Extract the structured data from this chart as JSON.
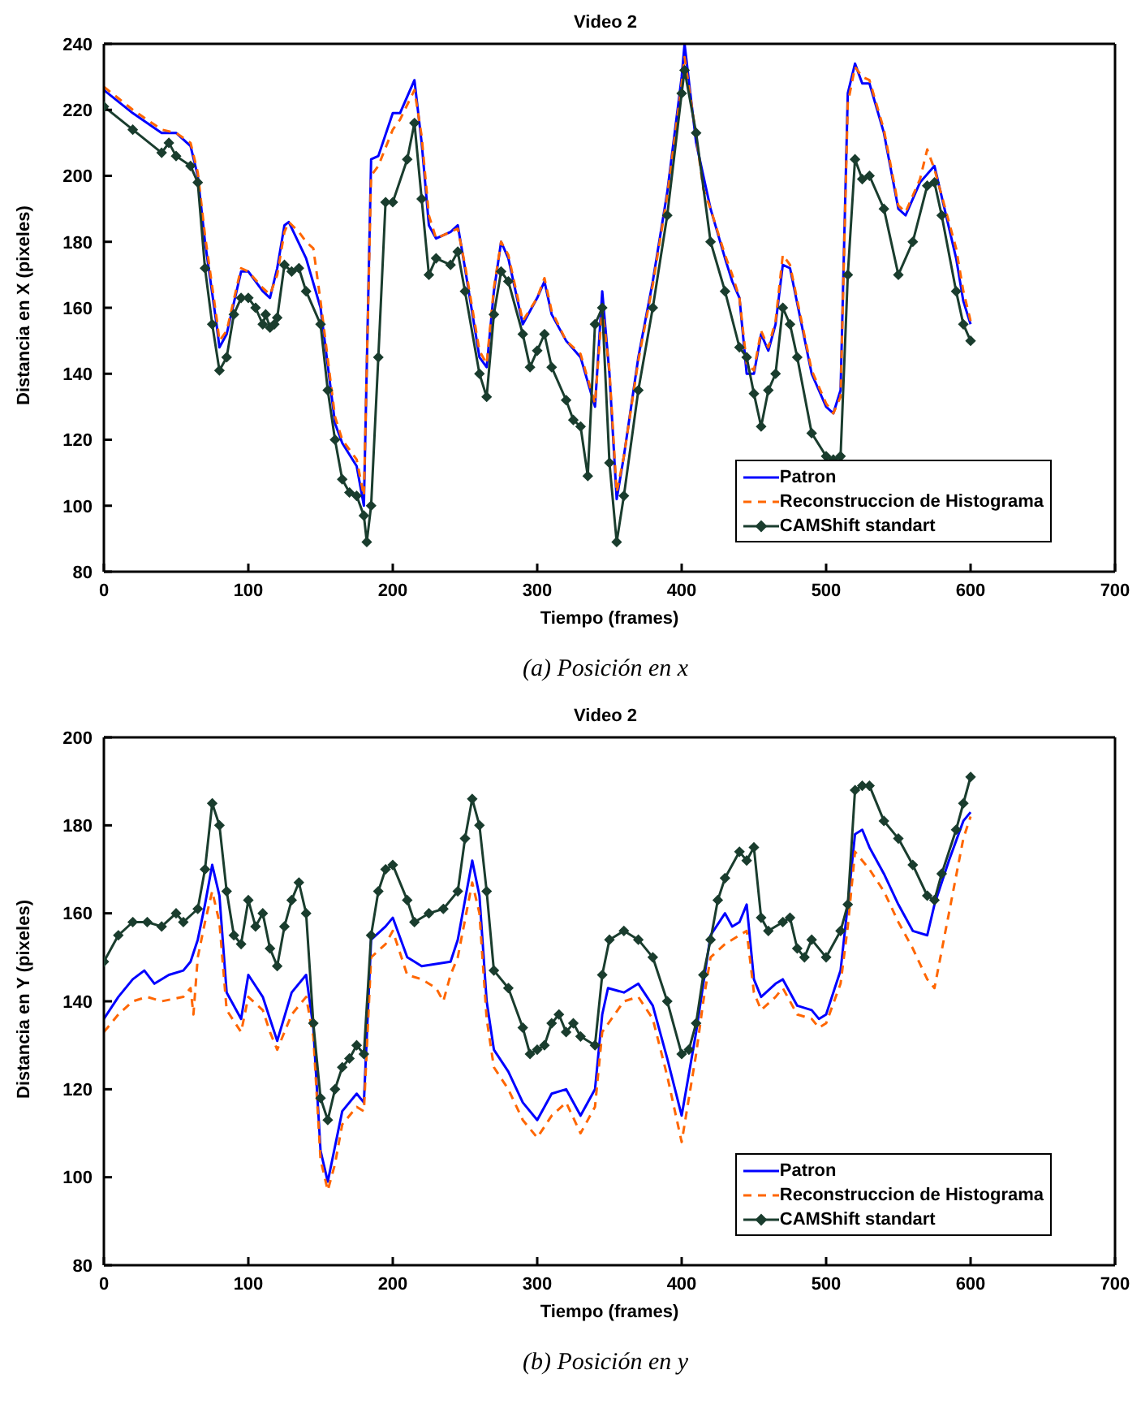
{
  "chart_data": [
    {
      "type": "line",
      "title": "Video 2",
      "xlabel": "Tiempo (frames)",
      "ylabel": "Distancia en X (pixeles)",
      "xlim": [
        0,
        700
      ],
      "xticks": [
        0,
        100,
        200,
        300,
        400,
        500,
        600,
        700
      ],
      "ylim": [
        80,
        240
      ],
      "yticks": [
        80,
        100,
        120,
        140,
        160,
        180,
        200,
        220,
        240
      ],
      "grid": false,
      "legend": "bottom right",
      "annotations": [
        "(a) Posición en x"
      ],
      "series": [
        {
          "name": "Patron",
          "color": "#0000ff",
          "line_style": "solid",
          "marker": "none",
          "x": [
            0,
            20,
            40,
            50,
            60,
            65,
            70,
            78,
            80,
            85,
            95,
            100,
            110,
            115,
            120,
            125,
            128,
            140,
            150,
            160,
            165,
            175,
            180,
            185,
            190,
            200,
            205,
            215,
            220,
            225,
            230,
            240,
            245,
            250,
            260,
            265,
            270,
            275,
            280,
            290,
            300,
            305,
            310,
            320,
            330,
            340,
            345,
            350,
            355,
            360,
            370,
            380,
            390,
            400,
            402,
            410,
            420,
            430,
            435,
            440,
            445,
            450,
            455,
            460,
            465,
            470,
            475,
            490,
            500,
            505,
            510,
            515,
            520,
            525,
            530,
            540,
            550,
            555,
            565,
            575,
            590,
            595,
            600
          ],
          "values": [
            226,
            219,
            213,
            213,
            209,
            200,
            180,
            155,
            148,
            152,
            171,
            171,
            165,
            163,
            172,
            185,
            186,
            175,
            160,
            125,
            119,
            112,
            100,
            205,
            206,
            219,
            219,
            229,
            210,
            185,
            181,
            183,
            185,
            172,
            145,
            142,
            165,
            180,
            175,
            155,
            163,
            168,
            158,
            150,
            145,
            130,
            165,
            140,
            102,
            115,
            145,
            168,
            195,
            230,
            240,
            210,
            190,
            175,
            168,
            163,
            140,
            140,
            152,
            147,
            155,
            173,
            172,
            140,
            130,
            128,
            135,
            225,
            234,
            228,
            228,
            213,
            190,
            188,
            198,
            203,
            175,
            162,
            155
          ]
        },
        {
          "name": "Reconstruccion de Histograma",
          "color": "#ff6600",
          "line_style": "dashed",
          "marker": "none",
          "x": [
            0,
            20,
            40,
            50,
            60,
            65,
            70,
            78,
            80,
            85,
            95,
            100,
            110,
            115,
            120,
            125,
            128,
            135,
            140,
            145,
            150,
            160,
            165,
            175,
            180,
            185,
            190,
            200,
            205,
            215,
            220,
            225,
            230,
            240,
            245,
            250,
            260,
            265,
            270,
            275,
            280,
            290,
            300,
            305,
            310,
            320,
            330,
            340,
            345,
            350,
            355,
            360,
            370,
            380,
            390,
            400,
            402,
            410,
            415,
            420,
            430,
            435,
            440,
            445,
            450,
            455,
            460,
            465,
            470,
            475,
            490,
            500,
            505,
            510,
            515,
            520,
            525,
            530,
            540,
            550,
            555,
            565,
            570,
            575,
            590,
            595,
            600
          ],
          "values": [
            227,
            220,
            214,
            213,
            210,
            201,
            182,
            157,
            150,
            153,
            172,
            171,
            166,
            164,
            170,
            183,
            186,
            183,
            180,
            178,
            162,
            127,
            120,
            114,
            103,
            200,
            203,
            214,
            217,
            226,
            212,
            188,
            181,
            183,
            184,
            173,
            147,
            143,
            166,
            180,
            176,
            156,
            163,
            169,
            159,
            150,
            146,
            131,
            160,
            141,
            104,
            115,
            144,
            167,
            194,
            228,
            236,
            212,
            196,
            190,
            176,
            170,
            163,
            143,
            141,
            153,
            148,
            156,
            176,
            173,
            141,
            131,
            128,
            133,
            222,
            233,
            230,
            229,
            214,
            191,
            189,
            199,
            208,
            202,
            178,
            165,
            156
          ]
        },
        {
          "name": "CAMShift standart",
          "color": "#1a3d2e",
          "line_style": "solid",
          "marker": "diamond",
          "x": [
            0,
            20,
            40,
            45,
            50,
            60,
            65,
            70,
            75,
            80,
            85,
            90,
            95,
            100,
            105,
            110,
            112,
            115,
            118,
            120,
            125,
            130,
            135,
            140,
            150,
            155,
            160,
            165,
            170,
            175,
            180,
            182,
            185,
            190,
            195,
            200,
            210,
            215,
            220,
            225,
            230,
            240,
            245,
            250,
            260,
            265,
            270,
            275,
            280,
            290,
            295,
            300,
            305,
            310,
            320,
            325,
            330,
            335,
            340,
            345,
            350,
            355,
            360,
            370,
            380,
            390,
            400,
            402,
            410,
            420,
            430,
            440,
            445,
            450,
            455,
            460,
            465,
            470,
            475,
            480,
            490,
            500,
            505,
            510,
            515,
            520,
            525,
            530,
            540,
            550,
            560,
            570,
            575,
            580,
            590,
            595,
            600
          ],
          "values": [
            221,
            214,
            207,
            210,
            206,
            203,
            198,
            172,
            155,
            141,
            145,
            158,
            163,
            163,
            160,
            155,
            158,
            154,
            155,
            157,
            173,
            171,
            172,
            165,
            155,
            135,
            120,
            108,
            104,
            103,
            97,
            89,
            100,
            145,
            192,
            192,
            205,
            216,
            193,
            170,
            175,
            173,
            177,
            165,
            140,
            133,
            158,
            171,
            168,
            152,
            142,
            147,
            152,
            142,
            132,
            126,
            124,
            109,
            155,
            160,
            113,
            89,
            103,
            135,
            160,
            188,
            225,
            232,
            213,
            180,
            165,
            148,
            145,
            134,
            124,
            135,
            140,
            160,
            155,
            145,
            122,
            115,
            114,
            115,
            170,
            205,
            199,
            200,
            190,
            170,
            180,
            197,
            198,
            188,
            165,
            155,
            150
          ]
        }
      ]
    },
    {
      "type": "line",
      "title": "Video 2",
      "xlabel": "Tiempo (frames)",
      "ylabel": "Distancia en Y (pixeles)",
      "xlim": [
        0,
        700
      ],
      "xticks": [
        0,
        100,
        200,
        300,
        400,
        500,
        600,
        700
      ],
      "ylim": [
        80,
        200
      ],
      "yticks": [
        80,
        100,
        120,
        140,
        160,
        180,
        200
      ],
      "grid": false,
      "legend": "bottom right",
      "annotations": [
        "(b) Posición en y"
      ],
      "series": [
        {
          "name": "Patron",
          "color": "#0000ff",
          "line_style": "solid",
          "marker": "none",
          "x": [
            0,
            10,
            20,
            28,
            35,
            45,
            55,
            60,
            65,
            70,
            75,
            80,
            85,
            95,
            100,
            110,
            115,
            120,
            130,
            140,
            145,
            150,
            155,
            160,
            165,
            175,
            180,
            185,
            195,
            200,
            210,
            220,
            240,
            245,
            255,
            260,
            265,
            270,
            280,
            290,
            300,
            310,
            320,
            330,
            340,
            345,
            349,
            360,
            370,
            380,
            390,
            400,
            410,
            415,
            420,
            430,
            435,
            440,
            445,
            450,
            455,
            465,
            470,
            480,
            490,
            495,
            500,
            510,
            515,
            520,
            525,
            530,
            540,
            550,
            560,
            570,
            575,
            585,
            595,
            600
          ],
          "values": [
            136,
            141,
            145,
            147,
            144,
            146,
            147,
            149,
            154,
            162,
            171,
            164,
            142,
            136,
            146,
            141,
            136,
            131,
            142,
            146,
            134,
            106,
            99,
            107,
            115,
            119,
            117,
            154,
            157,
            159,
            150,
            148,
            149,
            154,
            172,
            164,
            140,
            129,
            124,
            117,
            113,
            119,
            120,
            114,
            120,
            137,
            143,
            142,
            144,
            139,
            127,
            114,
            133,
            144,
            155,
            160,
            157,
            158,
            162,
            145,
            141,
            144,
            145,
            139,
            138,
            136,
            137,
            147,
            162,
            178,
            179,
            175,
            169,
            162,
            156,
            155,
            162,
            172,
            181,
            183
          ]
        },
        {
          "name": "Reconstruccion de Histograma",
          "color": "#ff6600",
          "line_style": "dashed",
          "marker": "none",
          "x": [
            0,
            10,
            20,
            30,
            40,
            55,
            60,
            62,
            65,
            70,
            75,
            80,
            85,
            95,
            100,
            110,
            115,
            120,
            130,
            140,
            145,
            150,
            155,
            160,
            165,
            175,
            180,
            185,
            195,
            200,
            210,
            220,
            230,
            235,
            240,
            245,
            255,
            260,
            265,
            270,
            280,
            290,
            300,
            310,
            320,
            330,
            340,
            345,
            360,
            370,
            380,
            390,
            400,
            410,
            415,
            420,
            430,
            440,
            445,
            450,
            455,
            465,
            470,
            480,
            490,
            495,
            500,
            510,
            515,
            520,
            530,
            540,
            550,
            560,
            570,
            575,
            585,
            595,
            600
          ],
          "values": [
            133,
            137,
            140,
            141,
            140,
            141,
            143,
            137,
            150,
            158,
            165,
            158,
            138,
            133,
            141,
            138,
            133,
            129,
            137,
            141,
            132,
            104,
            97,
            103,
            112,
            116,
            115,
            150,
            153,
            156,
            146,
            145,
            143,
            140,
            146,
            150,
            167,
            160,
            136,
            125,
            120,
            113,
            109,
            114,
            117,
            110,
            116,
            133,
            140,
            141,
            136,
            123,
            108,
            128,
            140,
            150,
            153,
            155,
            156,
            142,
            138,
            141,
            143,
            137,
            136,
            134,
            135,
            144,
            157,
            174,
            170,
            165,
            158,
            152,
            145,
            143,
            160,
            177,
            182
          ]
        },
        {
          "name": "CAMShift standart",
          "color": "#1a3d2e",
          "line_style": "solid",
          "marker": "diamond",
          "x": [
            0,
            10,
            20,
            30,
            40,
            50,
            55,
            65,
            70,
            75,
            80,
            85,
            90,
            95,
            100,
            105,
            110,
            115,
            120,
            125,
            130,
            135,
            140,
            145,
            150,
            155,
            160,
            165,
            170,
            175,
            180,
            185,
            190,
            195,
            200,
            210,
            215,
            225,
            235,
            245,
            250,
            255,
            260,
            265,
            270,
            280,
            290,
            295,
            300,
            305,
            310,
            315,
            320,
            325,
            330,
            340,
            345,
            350,
            360,
            370,
            380,
            390,
            400,
            405,
            410,
            415,
            420,
            425,
            430,
            440,
            445,
            450,
            455,
            460,
            470,
            475,
            480,
            485,
            490,
            500,
            510,
            515,
            520,
            525,
            530,
            540,
            550,
            560,
            570,
            575,
            580,
            590,
            595,
            600
          ],
          "values": [
            149,
            155,
            158,
            158,
            157,
            160,
            158,
            161,
            170,
            185,
            180,
            165,
            155,
            153,
            163,
            157,
            160,
            152,
            148,
            157,
            163,
            167,
            160,
            135,
            118,
            113,
            120,
            125,
            127,
            130,
            128,
            155,
            165,
            170,
            171,
            163,
            158,
            160,
            161,
            165,
            177,
            186,
            180,
            165,
            147,
            143,
            134,
            128,
            129,
            130,
            135,
            137,
            133,
            135,
            132,
            130,
            146,
            154,
            156,
            154,
            150,
            140,
            128,
            129,
            135,
            146,
            154,
            163,
            168,
            174,
            172,
            175,
            159,
            156,
            158,
            159,
            152,
            150,
            154,
            150,
            156,
            162,
            188,
            189,
            189,
            181,
            177,
            171,
            164,
            163,
            169,
            179,
            185,
            191
          ]
        }
      ]
    }
  ]
}
